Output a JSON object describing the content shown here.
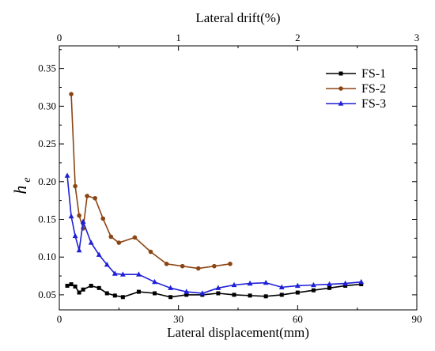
{
  "chart_data": {
    "type": "line",
    "xlabel": "Lateral displacement(mm)",
    "x2label": "Lateral drift(%)",
    "ylabel": "h",
    "ylabel_sub": "e",
    "xlim": [
      0,
      90
    ],
    "x2lim": [
      0,
      3
    ],
    "ylim": [
      0.03,
      0.38
    ],
    "xticks": [
      "0",
      "30",
      "60",
      "90"
    ],
    "x2ticks": [
      "0",
      "1",
      "2",
      "3"
    ],
    "yticks": [
      "0.05",
      "0.10",
      "0.15",
      "0.20",
      "0.25",
      "0.30",
      "0.35"
    ],
    "grid": false,
    "legend_position": "top-right",
    "series": [
      {
        "name": "FS-1",
        "color": "#000000",
        "marker": "square",
        "x": [
          2,
          3,
          4,
          5,
          6,
          8,
          10,
          12,
          14,
          16,
          20,
          24,
          28,
          32,
          36,
          40,
          44,
          48,
          52,
          56,
          60,
          64,
          68,
          72,
          76
        ],
        "y": [
          0.062,
          0.064,
          0.061,
          0.053,
          0.057,
          0.062,
          0.059,
          0.052,
          0.049,
          0.047,
          0.054,
          0.052,
          0.047,
          0.05,
          0.05,
          0.052,
          0.05,
          0.049,
          0.048,
          0.05,
          0.053,
          0.056,
          0.059,
          0.062,
          0.064
        ]
      },
      {
        "name": "FS-2",
        "color": "#8b4513",
        "marker": "circle",
        "x": [
          3,
          4,
          5,
          6,
          7,
          9,
          11,
          13,
          15,
          19,
          23,
          27,
          31,
          35,
          39,
          43
        ],
        "y": [
          0.316,
          0.194,
          0.155,
          0.138,
          0.181,
          0.178,
          0.151,
          0.127,
          0.119,
          0.126,
          0.107,
          0.091,
          0.088,
          0.085,
          0.088,
          0.091
        ]
      },
      {
        "name": "FS-3",
        "color": "#1f1fd6",
        "marker": "triangle",
        "x": [
          2,
          3,
          4,
          5,
          6,
          8,
          10,
          12,
          14,
          16,
          20,
          24,
          28,
          32,
          36,
          40,
          44,
          48,
          52,
          56,
          60,
          64,
          68,
          72,
          76
        ],
        "y": [
          0.208,
          0.154,
          0.128,
          0.109,
          0.147,
          0.119,
          0.103,
          0.09,
          0.078,
          0.077,
          0.077,
          0.067,
          0.059,
          0.054,
          0.052,
          0.059,
          0.063,
          0.065,
          0.066,
          0.06,
          0.062,
          0.063,
          0.064,
          0.065,
          0.067
        ]
      }
    ]
  }
}
